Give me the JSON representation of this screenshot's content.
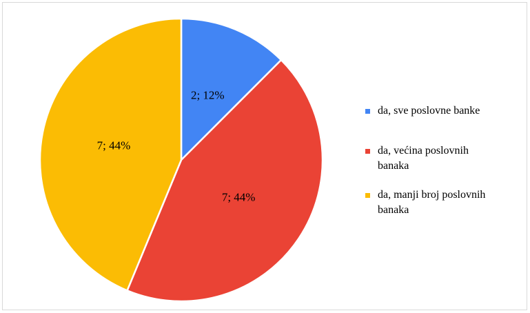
{
  "chart_data": {
    "type": "pie",
    "categories": [
      "da, sve poslovne banke",
      "da, većina poslovnih banaka",
      "da, manji broj poslovnih banaka"
    ],
    "values": [
      2,
      7,
      7
    ],
    "value_labels": [
      "2; 12%",
      "7; 44%",
      "7; 44%"
    ],
    "colors": [
      "#4285f4",
      "#ea4335",
      "#fbbc04"
    ],
    "legend": "right"
  }
}
